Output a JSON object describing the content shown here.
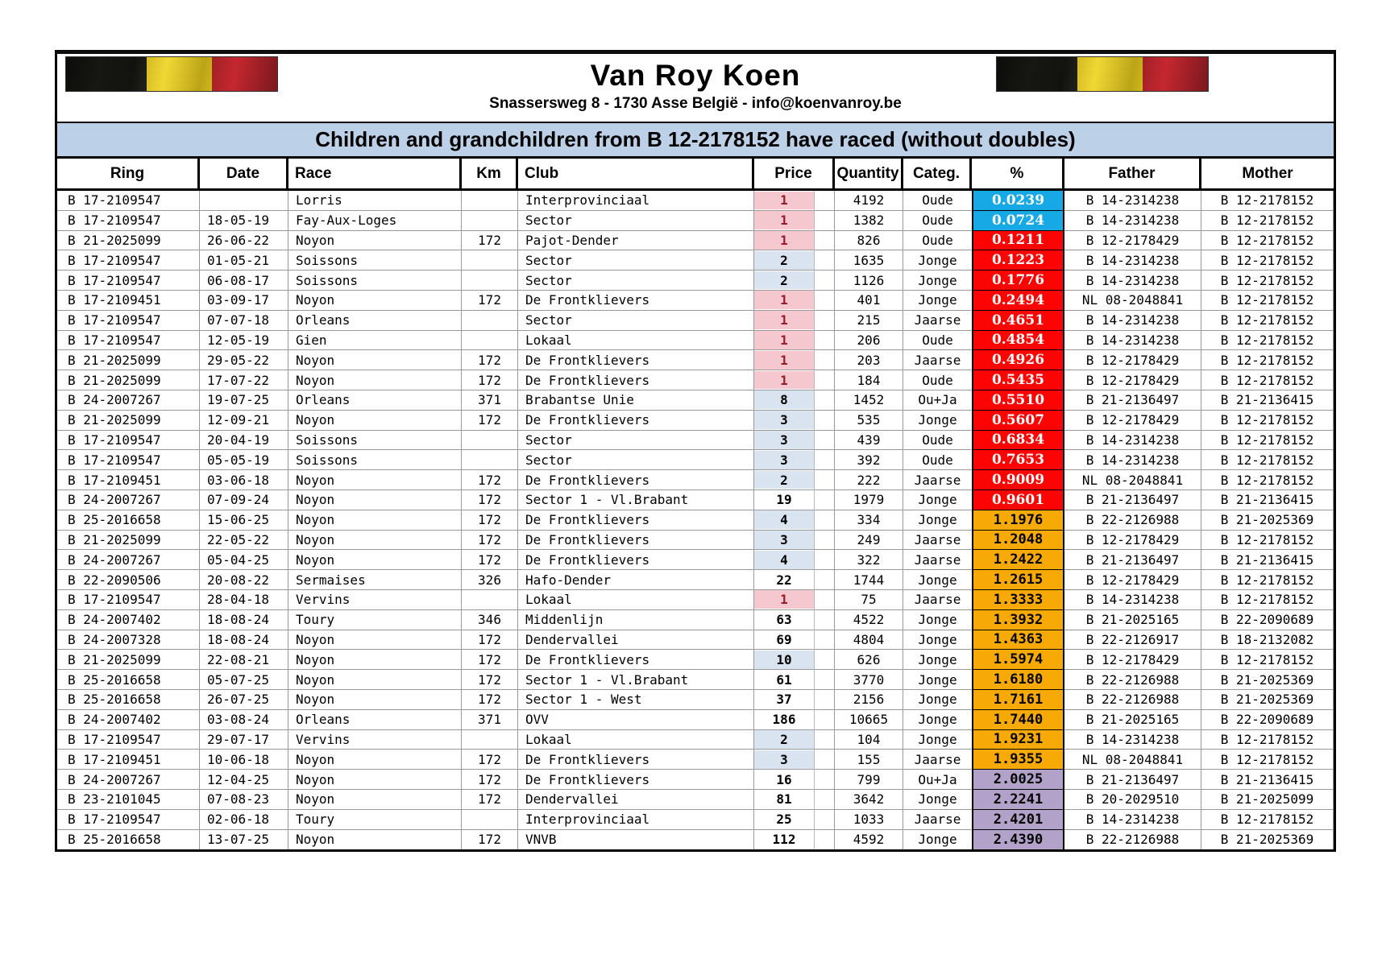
{
  "header": {
    "title": "Van Roy Koen",
    "subtitle": "Snassersweg 8 - 1730 Asse België - info@koenvanroy.be",
    "banner": "Children and grandchildren from B 12-2178152 have raced (without doubles)",
    "flag": "belgian-flag"
  },
  "colors": {
    "banner_bg": "#bcd0e8",
    "pct_blue": "#17a9e5",
    "pct_red": "#fd0404",
    "pct_orange": "#f7a906",
    "pct_purple": "#b2a1c9",
    "price_pink_bg": "#f5c7ce",
    "price_pink_text": "#9c1b26",
    "price_blue_bg": "#dae4f0"
  },
  "table": {
    "columns": [
      "Ring",
      "Date",
      "Race",
      "Km",
      "Club",
      "Price",
      "Quantity",
      "Categ.",
      "%",
      "Father",
      "Mother"
    ],
    "rows": [
      {
        "ring": "B 17-2109547",
        "date": "",
        "race": "Lorris",
        "km": "",
        "club": "Interprovinciaal",
        "price": "1",
        "price_style": "pink",
        "quantity": "4192",
        "categ": "Oude",
        "pct": "0.0239",
        "pct_style": "blue",
        "father": "B 14-2314238",
        "mother": "B 12-2178152"
      },
      {
        "ring": "B 17-2109547",
        "date": "18-05-19",
        "race": "Fay-Aux-Loges",
        "km": "",
        "club": "Sector",
        "price": "1",
        "price_style": "pink",
        "quantity": "1382",
        "categ": "Oude",
        "pct": "0.0724",
        "pct_style": "blue",
        "father": "B 14-2314238",
        "mother": "B 12-2178152"
      },
      {
        "ring": "B 21-2025099",
        "date": "26-06-22",
        "race": "Noyon",
        "km": "172",
        "club": "Pajot-Dender",
        "price": "1",
        "price_style": "pink",
        "quantity": "826",
        "categ": "Oude",
        "pct": "0.1211",
        "pct_style": "red",
        "father": "B 12-2178429",
        "mother": "B 12-2178152"
      },
      {
        "ring": "B 17-2109547",
        "date": "01-05-21",
        "race": "Soissons",
        "km": "",
        "club": "Sector",
        "price": "2",
        "price_style": "blue",
        "quantity": "1635",
        "categ": "Jonge",
        "pct": "0.1223",
        "pct_style": "red",
        "father": "B 14-2314238",
        "mother": "B 12-2178152"
      },
      {
        "ring": "B 17-2109547",
        "date": "06-08-17",
        "race": "Soissons",
        "km": "",
        "club": "Sector",
        "price": "2",
        "price_style": "blue",
        "quantity": "1126",
        "categ": "Jonge",
        "pct": "0.1776",
        "pct_style": "red",
        "father": "B 14-2314238",
        "mother": "B 12-2178152"
      },
      {
        "ring": "B 17-2109451",
        "date": "03-09-17",
        "race": "Noyon",
        "km": "172",
        "club": "De Frontklievers",
        "price": "1",
        "price_style": "pink",
        "quantity": "401",
        "categ": "Jonge",
        "pct": "0.2494",
        "pct_style": "red",
        "father": "NL 08-2048841",
        "mother": "B 12-2178152"
      },
      {
        "ring": "B 17-2109547",
        "date": "07-07-18",
        "race": "Orleans",
        "km": "",
        "club": "Sector",
        "price": "1",
        "price_style": "pink",
        "quantity": "215",
        "categ": "Jaarse",
        "pct": "0.4651",
        "pct_style": "red",
        "father": "B 14-2314238",
        "mother": "B 12-2178152"
      },
      {
        "ring": "B 17-2109547",
        "date": "12-05-19",
        "race": "Gien",
        "km": "",
        "club": "Lokaal",
        "price": "1",
        "price_style": "pink",
        "quantity": "206",
        "categ": "Oude",
        "pct": "0.4854",
        "pct_style": "red",
        "father": "B 14-2314238",
        "mother": "B 12-2178152"
      },
      {
        "ring": "B 21-2025099",
        "date": "29-05-22",
        "race": "Noyon",
        "km": "172",
        "club": "De Frontklievers",
        "price": "1",
        "price_style": "pink",
        "quantity": "203",
        "categ": "Jaarse",
        "pct": "0.4926",
        "pct_style": "red",
        "father": "B 12-2178429",
        "mother": "B 12-2178152"
      },
      {
        "ring": "B 21-2025099",
        "date": "17-07-22",
        "race": "Noyon",
        "km": "172",
        "club": "De Frontklievers",
        "price": "1",
        "price_style": "pink",
        "quantity": "184",
        "categ": "Oude",
        "pct": "0.5435",
        "pct_style": "red",
        "father": "B 12-2178429",
        "mother": "B 12-2178152"
      },
      {
        "ring": "B 24-2007267",
        "date": "19-07-25",
        "race": "Orleans",
        "km": "371",
        "club": "Brabantse Unie",
        "price": "8",
        "price_style": "blue",
        "quantity": "1452",
        "categ": "Ou+Ja",
        "pct": "0.5510",
        "pct_style": "red",
        "father": "B 21-2136497",
        "mother": "B 21-2136415"
      },
      {
        "ring": "B 21-2025099",
        "date": "12-09-21",
        "race": "Noyon",
        "km": "172",
        "club": "De Frontklievers",
        "price": "3",
        "price_style": "blue",
        "quantity": "535",
        "categ": "Jonge",
        "pct": "0.5607",
        "pct_style": "red",
        "father": "B 12-2178429",
        "mother": "B 12-2178152"
      },
      {
        "ring": "B 17-2109547",
        "date": "20-04-19",
        "race": "Soissons",
        "km": "",
        "club": "Sector",
        "price": "3",
        "price_style": "blue",
        "quantity": "439",
        "categ": "Oude",
        "pct": "0.6834",
        "pct_style": "red",
        "father": "B 14-2314238",
        "mother": "B 12-2178152"
      },
      {
        "ring": "B 17-2109547",
        "date": "05-05-19",
        "race": "Soissons",
        "km": "",
        "club": "Sector",
        "price": "3",
        "price_style": "blue",
        "quantity": "392",
        "categ": "Oude",
        "pct": "0.7653",
        "pct_style": "red",
        "father": "B 14-2314238",
        "mother": "B 12-2178152"
      },
      {
        "ring": "B 17-2109451",
        "date": "03-06-18",
        "race": "Noyon",
        "km": "172",
        "club": "De Frontklievers",
        "price": "2",
        "price_style": "blue",
        "quantity": "222",
        "categ": "Jaarse",
        "pct": "0.9009",
        "pct_style": "red",
        "father": "NL 08-2048841",
        "mother": "B 12-2178152"
      },
      {
        "ring": "B 24-2007267",
        "date": "07-09-24",
        "race": "Noyon",
        "km": "172",
        "club": "Sector 1 - Vl.Brabant",
        "price": "19",
        "price_style": "none",
        "quantity": "1979",
        "categ": "Jonge",
        "pct": "0.9601",
        "pct_style": "red",
        "father": "B 21-2136497",
        "mother": "B 21-2136415"
      },
      {
        "ring": "B 25-2016658",
        "date": "15-06-25",
        "race": "Noyon",
        "km": "172",
        "club": "De Frontklievers",
        "price": "4",
        "price_style": "blue",
        "quantity": "334",
        "categ": "Jonge",
        "pct": "1.1976",
        "pct_style": "orange",
        "father": "B 22-2126988",
        "mother": "B 21-2025369"
      },
      {
        "ring": "B 21-2025099",
        "date": "22-05-22",
        "race": "Noyon",
        "km": "172",
        "club": "De Frontklievers",
        "price": "3",
        "price_style": "blue",
        "quantity": "249",
        "categ": "Jaarse",
        "pct": "1.2048",
        "pct_style": "orange",
        "father": "B 12-2178429",
        "mother": "B 12-2178152"
      },
      {
        "ring": "B 24-2007267",
        "date": "05-04-25",
        "race": "Noyon",
        "km": "172",
        "club": "De Frontklievers",
        "price": "4",
        "price_style": "blue",
        "quantity": "322",
        "categ": "Jaarse",
        "pct": "1.2422",
        "pct_style": "orange",
        "father": "B 21-2136497",
        "mother": "B 21-2136415"
      },
      {
        "ring": "B 22-2090506",
        "date": "20-08-22",
        "race": "Sermaises",
        "km": "326",
        "club": "Hafo-Dender",
        "price": "22",
        "price_style": "none",
        "quantity": "1744",
        "categ": "Jonge",
        "pct": "1.2615",
        "pct_style": "orange",
        "father": "B 12-2178429",
        "mother": "B 12-2178152"
      },
      {
        "ring": "B 17-2109547",
        "date": "28-04-18",
        "race": "Vervins",
        "km": "",
        "club": "Lokaal",
        "price": "1",
        "price_style": "pink",
        "quantity": "75",
        "categ": "Jaarse",
        "pct": "1.3333",
        "pct_style": "orange",
        "father": "B 14-2314238",
        "mother": "B 12-2178152"
      },
      {
        "ring": "B 24-2007402",
        "date": "18-08-24",
        "race": "Toury",
        "km": "346",
        "club": "Middenlijn",
        "price": "63",
        "price_style": "none",
        "quantity": "4522",
        "categ": "Jonge",
        "pct": "1.3932",
        "pct_style": "orange",
        "father": "B 21-2025165",
        "mother": "B 22-2090689"
      },
      {
        "ring": "B 24-2007328",
        "date": "18-08-24",
        "race": "Noyon",
        "km": "172",
        "club": "Dendervallei",
        "price": "69",
        "price_style": "none",
        "quantity": "4804",
        "categ": "Jonge",
        "pct": "1.4363",
        "pct_style": "orange",
        "father": "B 22-2126917",
        "mother": "B 18-2132082"
      },
      {
        "ring": "B 21-2025099",
        "date": "22-08-21",
        "race": "Noyon",
        "km": "172",
        "club": "De Frontklievers",
        "price": "10",
        "price_style": "blue",
        "quantity": "626",
        "categ": "Jonge",
        "pct": "1.5974",
        "pct_style": "orange",
        "father": "B 12-2178429",
        "mother": "B 12-2178152"
      },
      {
        "ring": "B 25-2016658",
        "date": "05-07-25",
        "race": "Noyon",
        "km": "172",
        "club": "Sector 1 - Vl.Brabant",
        "price": "61",
        "price_style": "none",
        "quantity": "3770",
        "categ": "Jonge",
        "pct": "1.6180",
        "pct_style": "orange",
        "father": "B 22-2126988",
        "mother": "B 21-2025369"
      },
      {
        "ring": "B 25-2016658",
        "date": "26-07-25",
        "race": "Noyon",
        "km": "172",
        "club": "Sector 1 - West",
        "price": "37",
        "price_style": "none",
        "quantity": "2156",
        "categ": "Jonge",
        "pct": "1.7161",
        "pct_style": "orange",
        "father": "B 22-2126988",
        "mother": "B 21-2025369"
      },
      {
        "ring": "B 24-2007402",
        "date": "03-08-24",
        "race": "Orleans",
        "km": "371",
        "club": "OVV",
        "price": "186",
        "price_style": "none",
        "quantity": "10665",
        "categ": "Jonge",
        "pct": "1.7440",
        "pct_style": "orange",
        "father": "B 21-2025165",
        "mother": "B 22-2090689"
      },
      {
        "ring": "B 17-2109547",
        "date": "29-07-17",
        "race": "Vervins",
        "km": "",
        "club": "Lokaal",
        "price": "2",
        "price_style": "blue",
        "quantity": "104",
        "categ": "Jonge",
        "pct": "1.9231",
        "pct_style": "orange",
        "father": "B 14-2314238",
        "mother": "B 12-2178152"
      },
      {
        "ring": "B 17-2109451",
        "date": "10-06-18",
        "race": "Noyon",
        "km": "172",
        "club": "De Frontklievers",
        "price": "3",
        "price_style": "blue",
        "quantity": "155",
        "categ": "Jaarse",
        "pct": "1.9355",
        "pct_style": "orange",
        "father": "NL 08-2048841",
        "mother": "B 12-2178152"
      },
      {
        "ring": "B 24-2007267",
        "date": "12-04-25",
        "race": "Noyon",
        "km": "172",
        "club": "De Frontklievers",
        "price": "16",
        "price_style": "none",
        "quantity": "799",
        "categ": "Ou+Ja",
        "pct": "2.0025",
        "pct_style": "purple",
        "father": "B 21-2136497",
        "mother": "B 21-2136415"
      },
      {
        "ring": "B 23-2101045",
        "date": "07-08-23",
        "race": "Noyon",
        "km": "172",
        "club": "Dendervallei",
        "price": "81",
        "price_style": "none",
        "quantity": "3642",
        "categ": "Jonge",
        "pct": "2.2241",
        "pct_style": "purple",
        "father": "B 20-2029510",
        "mother": "B 21-2025099"
      },
      {
        "ring": "B 17-2109547",
        "date": "02-06-18",
        "race": "Toury",
        "km": "",
        "club": "Interprovinciaal",
        "price": "25",
        "price_style": "none",
        "quantity": "1033",
        "categ": "Jaarse",
        "pct": "2.4201",
        "pct_style": "purple",
        "father": "B 14-2314238",
        "mother": "B 12-2178152"
      },
      {
        "ring": "B 25-2016658",
        "date": "13-07-25",
        "race": "Noyon",
        "km": "172",
        "club": "VNVB",
        "price": "112",
        "price_style": "none",
        "quantity": "4592",
        "categ": "Jonge",
        "pct": "2.4390",
        "pct_style": "purple",
        "father": "B 22-2126988",
        "mother": "B 21-2025369"
      }
    ]
  }
}
